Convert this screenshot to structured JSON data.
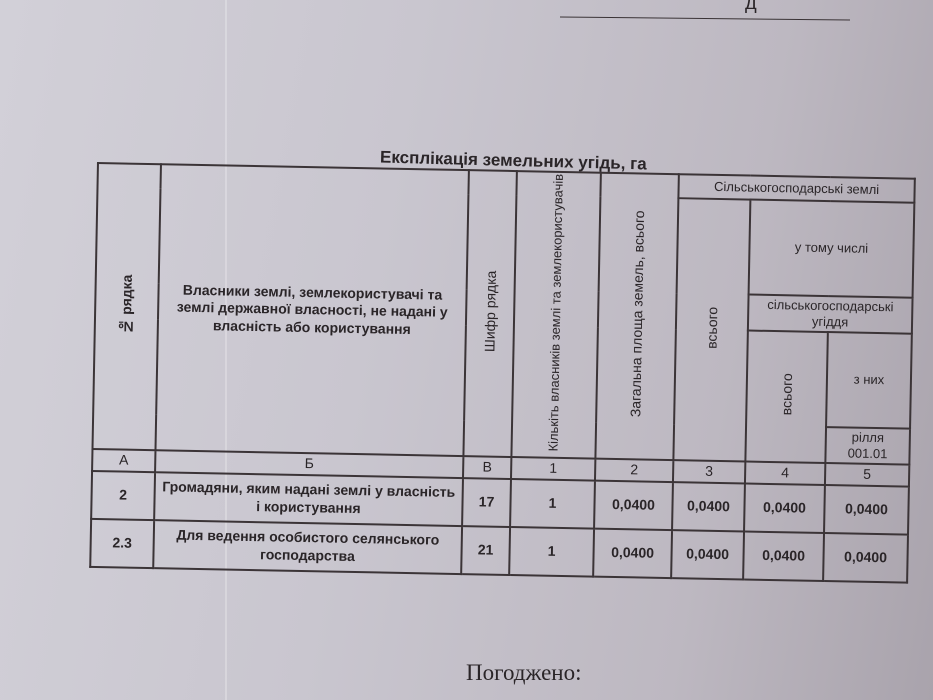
{
  "top_fragment": "д",
  "title": "Експлікація земельних угідь, га",
  "headers": {
    "row_no": "№ рядка",
    "owners": "Власники землі, землекористувачі та землі державної власності, не надані у власність або користування",
    "code": "Шифр рядка",
    "count": "Кількіть власників землі та землекористувачів",
    "total_area": "Загальна площа земель, всього",
    "agri_lands": "Сільськогосподарські землі",
    "agri_total": "всього",
    "including": "у тому числі",
    "agri_holdings": "сільськогосподарські угіддя",
    "holdings_total": "всього",
    "of_which": "з них",
    "arable": "рілля",
    "arable_code": "001.01"
  },
  "index_row": [
    "А",
    "Б",
    "В",
    "1",
    "2",
    "3",
    "4",
    "5"
  ],
  "rows": [
    [
      "2",
      "Громадяни, яким надані землі у власність і користування",
      "17",
      "1",
      "0,0400",
      "0,0400",
      "0,0400",
      "0,0400"
    ],
    [
      "2.3",
      "Для ведення особистого селянського господарства",
      "21",
      "1",
      "0,0400",
      "0,0400",
      "0,0400",
      "0,0400"
    ]
  ],
  "signature_label": "Погоджено:"
}
